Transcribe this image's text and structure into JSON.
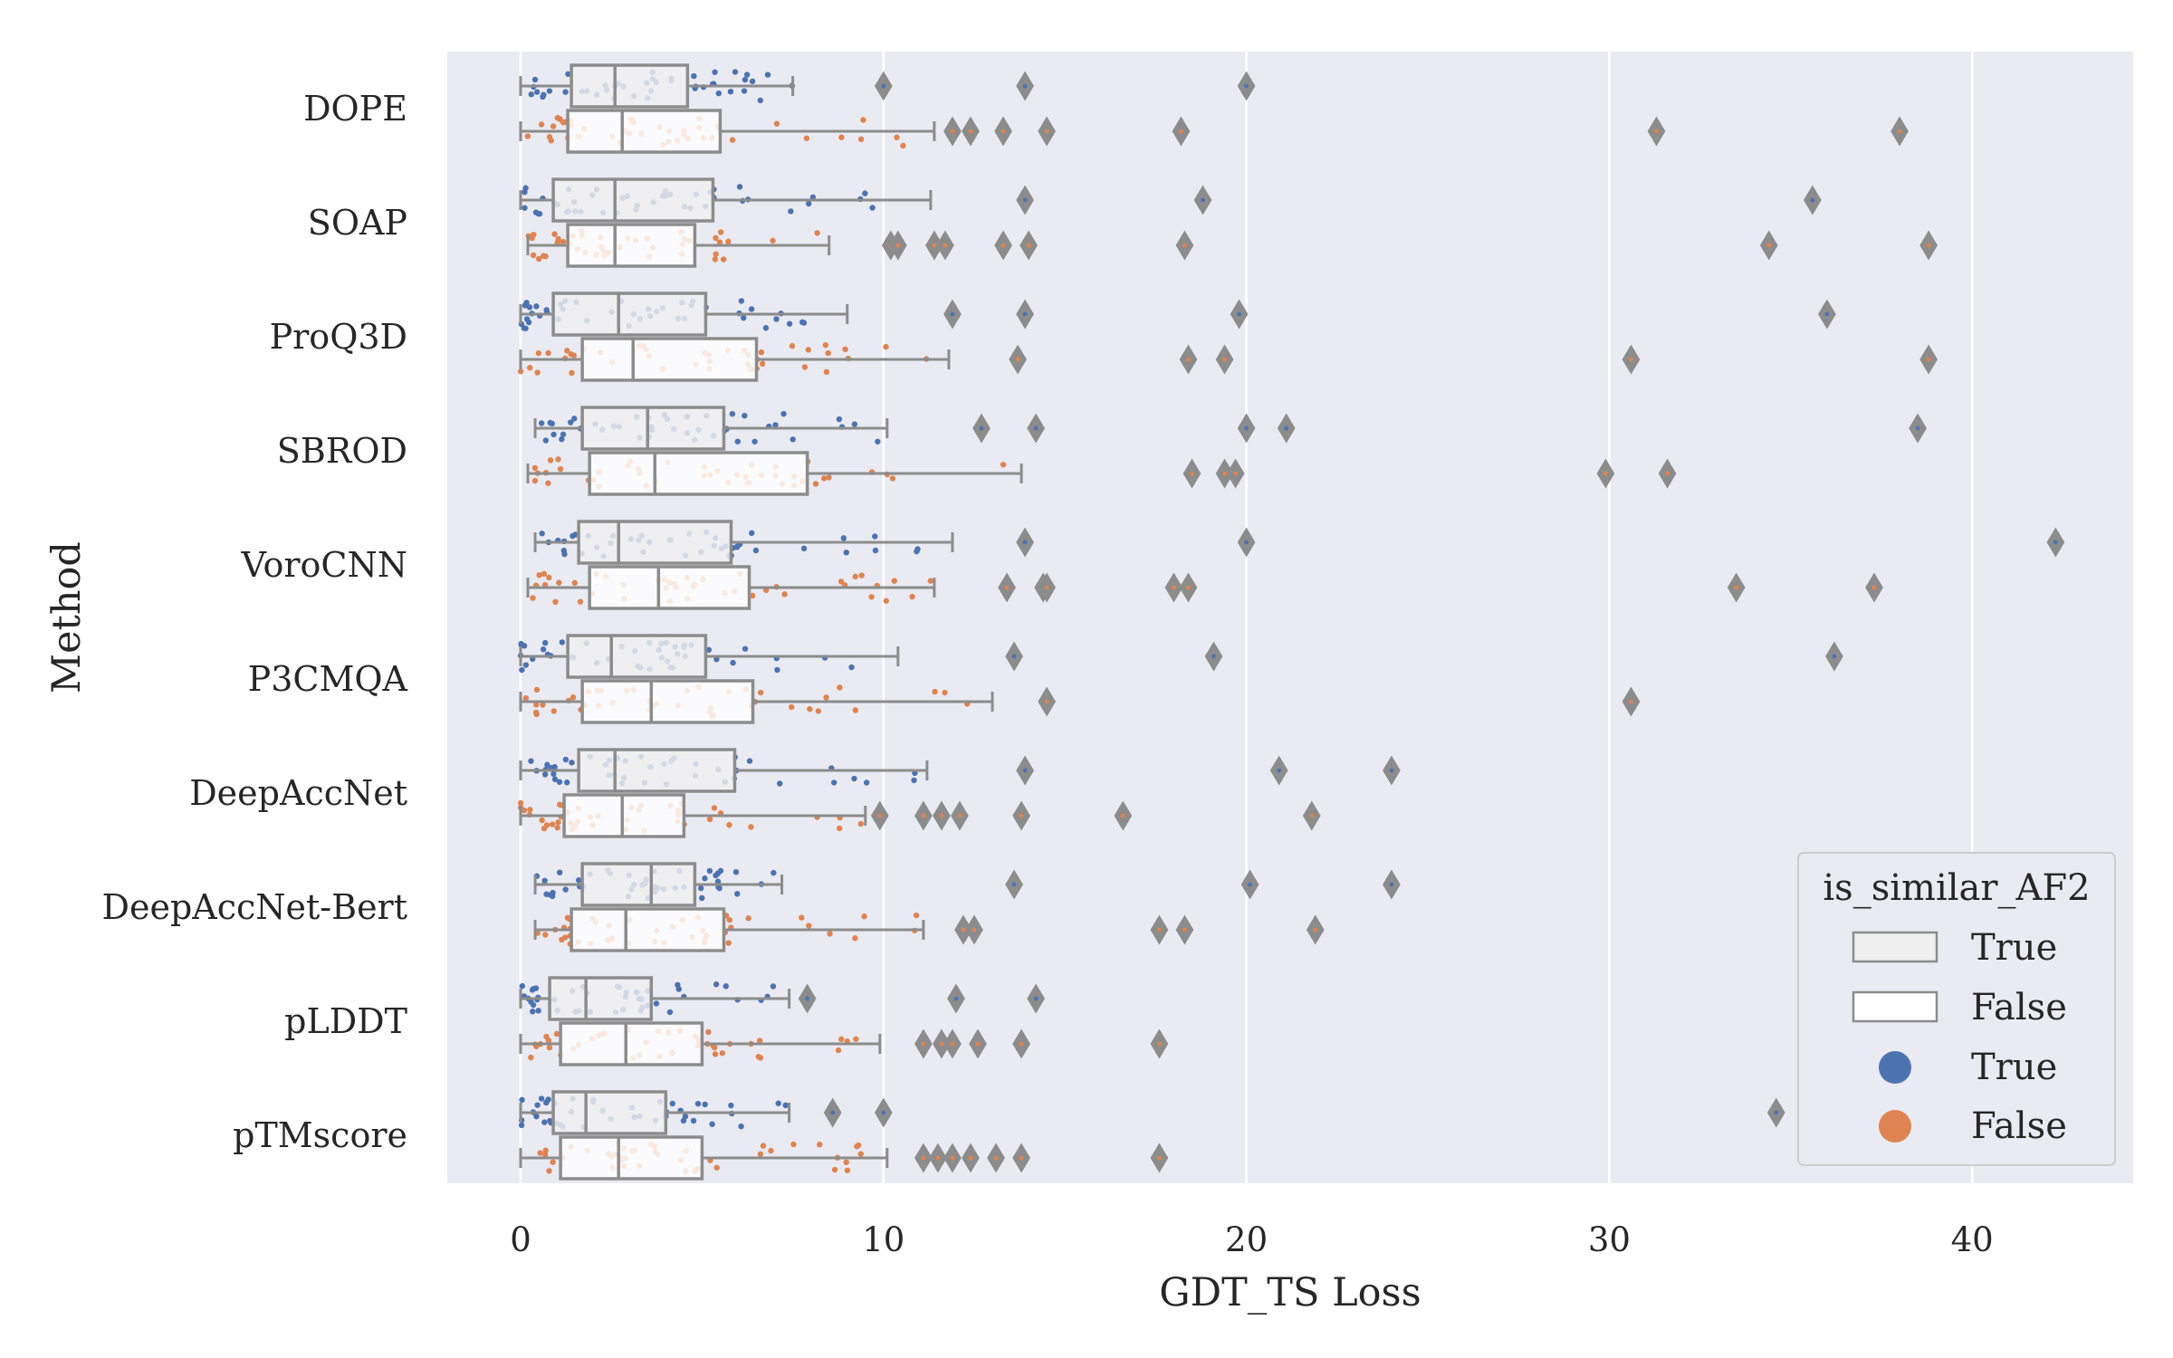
{
  "chart_data": {
    "type": "boxplot",
    "orientation": "horizontal",
    "xlabel": "GDT_TS Loss",
    "ylabel": "Method",
    "xlim": [
      -2,
      44
    ],
    "xticks": [
      0,
      10,
      20,
      30,
      40
    ],
    "grid": true,
    "legend": {
      "title": "is_similar_AF2",
      "placement": "bottom-right",
      "box_entries": [
        "True",
        "False"
      ],
      "point_entries": [
        "True",
        "False"
      ]
    },
    "colors": {
      "plot_bg": "#eaeaf2",
      "grid": "#ffffff",
      "box_true": "#f0f0f0",
      "box_false": "#ffffff",
      "box_edge": "#8c8c8c",
      "point_true": "#4c72b0",
      "point_false": "#dd8452"
    },
    "series": [
      {
        "name": "True",
        "methods": [
          {
            "method": "DOPE",
            "whislo": 0.0,
            "q1": 1.4,
            "med": 2.6,
            "q3": 4.6,
            "whishi": 7.5,
            "fliers": [
              10.0,
              13.9,
              20.0
            ]
          },
          {
            "method": "SOAP",
            "whislo": 0.0,
            "q1": 0.9,
            "med": 2.6,
            "q3": 5.3,
            "whishi": 11.3,
            "fliers": [
              13.9,
              18.8,
              35.6
            ]
          },
          {
            "method": "ProQ3D",
            "whislo": 0.0,
            "q1": 0.9,
            "med": 2.7,
            "q3": 5.1,
            "whishi": 9.0,
            "fliers": [
              11.9,
              13.9,
              19.8,
              36.0
            ]
          },
          {
            "method": "SBROD",
            "whislo": 0.4,
            "q1": 1.7,
            "med": 3.5,
            "q3": 5.6,
            "whishi": 10.1,
            "fliers": [
              12.7,
              14.2,
              20.0,
              21.1,
              38.5
            ]
          },
          {
            "method": "VoroCNN",
            "whislo": 0.4,
            "q1": 1.6,
            "med": 2.7,
            "q3": 5.8,
            "whishi": 11.9,
            "fliers": [
              13.9,
              20.0,
              42.3
            ]
          },
          {
            "method": "P3CMQA",
            "whislo": 0.0,
            "q1": 1.3,
            "med": 2.5,
            "q3": 5.1,
            "whishi": 10.4,
            "fliers": [
              13.6,
              19.1,
              36.2
            ]
          },
          {
            "method": "DeepAccNet",
            "whislo": 0.0,
            "q1": 1.6,
            "med": 2.6,
            "q3": 5.9,
            "whishi": 11.2,
            "fliers": [
              13.9,
              20.9,
              24.0
            ]
          },
          {
            "method": "DeepAccNet-Bert",
            "whislo": 0.4,
            "q1": 1.7,
            "med": 3.6,
            "q3": 4.8,
            "whishi": 7.2,
            "fliers": [
              13.6,
              20.1,
              24.0
            ]
          },
          {
            "method": "pLDDT",
            "whislo": 0.0,
            "q1": 0.8,
            "med": 1.8,
            "q3": 3.6,
            "whishi": 7.4,
            "fliers": [
              7.9,
              12.0,
              14.2
            ]
          },
          {
            "method": "pTMscore",
            "whislo": 0.0,
            "q1": 0.9,
            "med": 1.8,
            "q3": 4.0,
            "whishi": 7.4,
            "fliers": [
              8.6,
              10.0,
              34.6
            ]
          }
        ]
      },
      {
        "name": "False",
        "methods": [
          {
            "method": "DOPE",
            "whislo": 0.0,
            "q1": 1.3,
            "med": 2.8,
            "q3": 5.5,
            "whishi": 11.4,
            "fliers": [
              11.9,
              12.4,
              13.3,
              14.5,
              18.2,
              31.3,
              38.0
            ]
          },
          {
            "method": "SOAP",
            "whislo": 0.2,
            "q1": 1.3,
            "med": 2.6,
            "q3": 4.8,
            "whishi": 8.5,
            "fliers": [
              10.2,
              10.4,
              11.4,
              11.7,
              13.3,
              14.0,
              18.3,
              34.4,
              38.8
            ]
          },
          {
            "method": "ProQ3D",
            "whislo": 0.0,
            "q1": 1.7,
            "med": 3.1,
            "q3": 6.5,
            "whishi": 11.8,
            "fliers": [
              13.7,
              18.4,
              19.4,
              30.6,
              38.8
            ]
          },
          {
            "method": "SBROD",
            "whislo": 0.2,
            "q1": 1.9,
            "med": 3.7,
            "q3": 7.9,
            "whishi": 13.8,
            "fliers": [
              18.5,
              19.4,
              19.7,
              29.9,
              31.6
            ]
          },
          {
            "method": "VoroCNN",
            "whislo": 0.2,
            "q1": 1.9,
            "med": 3.8,
            "q3": 6.3,
            "whishi": 11.4,
            "fliers": [
              13.4,
              14.4,
              14.5,
              18.0,
              18.4,
              33.5,
              37.3
            ]
          },
          {
            "method": "P3CMQA",
            "whislo": 0.0,
            "q1": 1.7,
            "med": 3.6,
            "q3": 6.4,
            "whishi": 13.0,
            "fliers": [
              14.5,
              30.6
            ]
          },
          {
            "method": "DeepAccNet",
            "whislo": 0.0,
            "q1": 1.2,
            "med": 2.8,
            "q3": 4.5,
            "whishi": 9.5,
            "fliers": [
              9.9,
              11.1,
              11.6,
              12.1,
              13.8,
              16.6,
              21.8
            ]
          },
          {
            "method": "DeepAccNet-Bert",
            "whislo": 0.4,
            "q1": 1.4,
            "med": 2.9,
            "q3": 5.6,
            "whishi": 11.1,
            "fliers": [
              12.2,
              12.5,
              17.6,
              18.3,
              21.9
            ]
          },
          {
            "method": "pLDDT",
            "whislo": 0.0,
            "q1": 1.1,
            "med": 2.9,
            "q3": 5.0,
            "whishi": 9.9,
            "fliers": [
              11.1,
              11.6,
              11.9,
              12.6,
              13.8,
              17.6
            ]
          },
          {
            "method": "pTMscore",
            "whislo": 0.0,
            "q1": 1.1,
            "med": 2.7,
            "q3": 5.0,
            "whishi": 10.1,
            "fliers": [
              11.1,
              11.5,
              11.9,
              12.4,
              13.1,
              13.8,
              17.6
            ]
          }
        ]
      }
    ]
  }
}
